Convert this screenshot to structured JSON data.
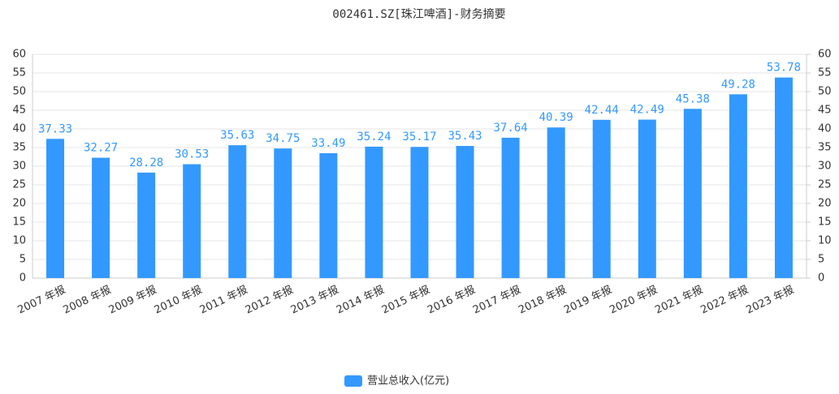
{
  "chart_data": {
    "type": "bar",
    "title": "002461.SZ[珠江啤酒]-财务摘要",
    "categories": [
      "2007 年报",
      "2008 年报",
      "2009 年报",
      "2010 年报",
      "2011 年报",
      "2012 年报",
      "2013 年报",
      "2014 年报",
      "2015 年报",
      "2016 年报",
      "2017 年报",
      "2018 年报",
      "2019 年报",
      "2020 年报",
      "2021 年报",
      "2022 年报",
      "2023 年报"
    ],
    "series": [
      {
        "name": "营业总收入(亿元)",
        "color": "#3399ff",
        "values": [
          37.33,
          32.27,
          28.28,
          30.53,
          35.63,
          34.75,
          33.49,
          35.24,
          35.17,
          35.43,
          37.64,
          40.39,
          42.44,
          42.49,
          45.38,
          49.28,
          53.78
        ]
      }
    ],
    "ylim": [
      0,
      60
    ],
    "yticks": [
      0,
      5,
      10,
      15,
      20,
      25,
      30,
      35,
      40,
      45,
      50,
      55,
      60
    ],
    "y2lim": [
      0,
      60
    ],
    "y2ticks": [
      0,
      5,
      10,
      15,
      20,
      25,
      30,
      35,
      40,
      45,
      50,
      55,
      60
    ],
    "grid": true,
    "legend": "bottom"
  }
}
